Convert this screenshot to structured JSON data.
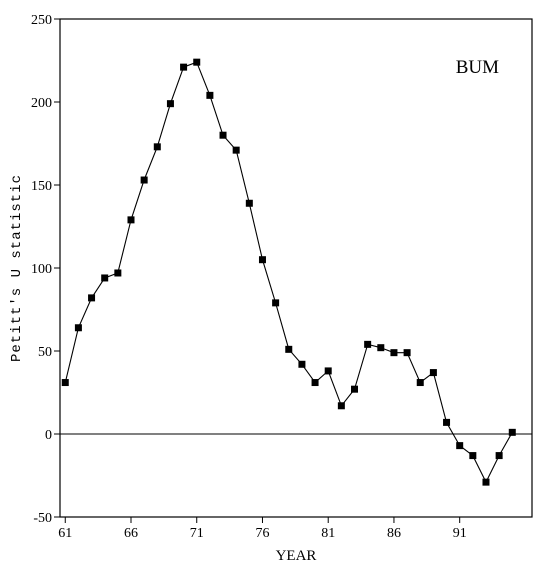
{
  "chart_data": {
    "type": "line",
    "title": "",
    "xlabel": "YEAR",
    "ylabel": "Petitt's U statistic",
    "annotation": "BUM",
    "xlim": [
      60.6,
      96.5
    ],
    "ylim": [
      -50,
      250
    ],
    "x_ticks": [
      61,
      66,
      71,
      76,
      81,
      86,
      91
    ],
    "y_ticks": [
      -50,
      0,
      50,
      100,
      150,
      200,
      250
    ],
    "reference_line_y": 0,
    "series": [
      {
        "marker": "square",
        "color": "#000000",
        "x": [
          61,
          62,
          63,
          64,
          65,
          66,
          67,
          68,
          69,
          70,
          71,
          72,
          73,
          74,
          75,
          76,
          77,
          78,
          79,
          80,
          81,
          82,
          83,
          84,
          85,
          86,
          87,
          88,
          89,
          90,
          91,
          92,
          93,
          94,
          95
        ],
        "y": [
          31,
          64,
          82,
          94,
          97,
          129,
          153,
          173,
          199,
          221,
          224,
          204,
          180,
          171,
          139,
          105,
          79,
          51,
          42,
          31,
          38,
          17,
          27,
          54,
          52,
          49,
          49,
          31,
          37,
          7,
          -7,
          -13,
          -29,
          -13,
          1
        ]
      }
    ]
  }
}
